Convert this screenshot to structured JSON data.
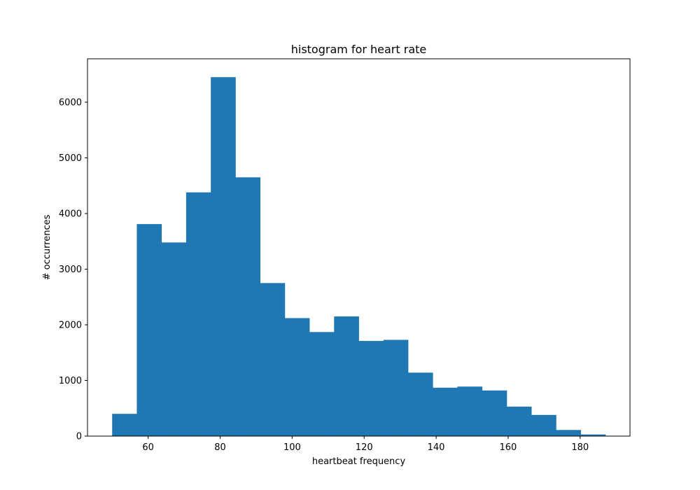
{
  "chart_data": {
    "type": "bar",
    "title": "histogram for heart rate",
    "xlabel": "heartbeat frequency",
    "ylabel": "# occurrences",
    "xlim": [
      43.15,
      193.85
    ],
    "ylim": [
      0,
      6780
    ],
    "x_ticks": [
      60,
      80,
      100,
      120,
      140,
      160,
      180
    ],
    "y_ticks": [
      0,
      1000,
      2000,
      3000,
      4000,
      5000,
      6000
    ],
    "bin_edges": [
      50,
      56.85,
      63.7,
      70.55,
      77.4,
      84.25,
      91.1,
      97.95,
      104.8,
      111.65,
      118.5,
      125.35,
      132.2,
      139.05,
      145.9,
      152.75,
      159.6,
      166.45,
      173.3,
      180.15,
      187
    ],
    "values": [
      400,
      3810,
      3480,
      4380,
      6450,
      4650,
      2750,
      2120,
      1870,
      2150,
      1710,
      1730,
      1140,
      870,
      890,
      820,
      530,
      380,
      110,
      30
    ],
    "bar_color": "#1f77b4",
    "grid": false,
    "legend": "none"
  }
}
